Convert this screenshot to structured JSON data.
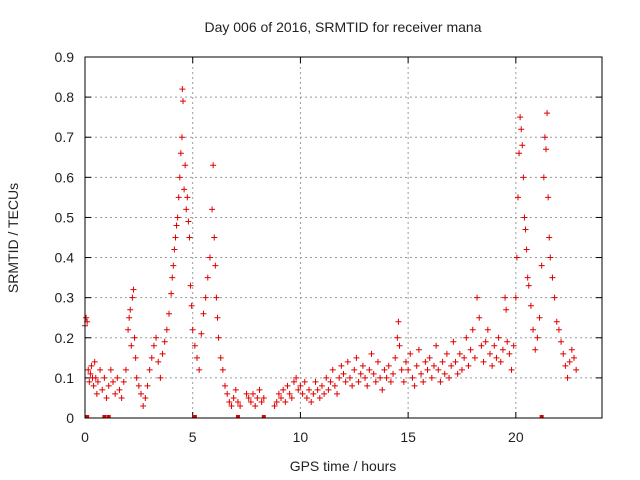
{
  "chart_data": {
    "type": "scatter",
    "title": "Day 006 of 2016, SRMTID for receiver mana",
    "xlabel": "GPS time / hours",
    "ylabel": "SRMTID / TECUs",
    "xlim": [
      0,
      24
    ],
    "ylim": [
      0,
      0.9
    ],
    "xticks": [
      0,
      5,
      10,
      15,
      20
    ],
    "yticks": [
      0,
      0.1,
      0.2,
      0.3,
      0.4,
      0.5,
      0.6,
      0.7,
      0.8,
      0.9
    ],
    "ytick_labels": [
      "0",
      "0.1",
      "0.2",
      "0.3",
      "0.4",
      "0.5",
      "0.6",
      "0.7",
      "0.8",
      "0.9"
    ],
    "grid": true,
    "marker": "+",
    "color": "#e00000",
    "series": [
      {
        "name": "SRMTID",
        "points": [
          [
            0.0,
            0.23
          ],
          [
            0.05,
            0.25
          ],
          [
            0.1,
            0.24
          ],
          [
            0.15,
            0.12
          ],
          [
            0.2,
            0.09
          ],
          [
            0.25,
            0.11
          ],
          [
            0.3,
            0.13
          ],
          [
            0.35,
            0.1
          ],
          [
            0.4,
            0.08
          ],
          [
            0.45,
            0.14
          ],
          [
            0.5,
            0.1
          ],
          [
            0.55,
            0.06
          ],
          [
            0.6,
            0.09
          ],
          [
            0.7,
            0.12
          ],
          [
            0.8,
            0.07
          ],
          [
            0.9,
            0.1
          ],
          [
            1.0,
            0.05
          ],
          [
            1.1,
            0.08
          ],
          [
            1.2,
            0.12
          ],
          [
            1.3,
            0.09
          ],
          [
            1.4,
            0.06
          ],
          [
            1.5,
            0.1
          ],
          [
            1.6,
            0.07
          ],
          [
            1.7,
            0.05
          ],
          [
            1.8,
            0.09
          ],
          [
            1.9,
            0.12
          ],
          [
            2.0,
            0.22
          ],
          [
            2.05,
            0.25
          ],
          [
            2.1,
            0.27
          ],
          [
            2.15,
            0.18
          ],
          [
            2.2,
            0.3
          ],
          [
            2.25,
            0.32
          ],
          [
            2.3,
            0.2
          ],
          [
            2.35,
            0.15
          ],
          [
            2.4,
            0.1
          ],
          [
            2.5,
            0.08
          ],
          [
            2.6,
            0.06
          ],
          [
            2.7,
            0.03
          ],
          [
            2.8,
            0.05
          ],
          [
            2.9,
            0.08
          ],
          [
            3.0,
            0.12
          ],
          [
            3.1,
            0.15
          ],
          [
            3.2,
            0.18
          ],
          [
            3.3,
            0.2
          ],
          [
            3.4,
            0.14
          ],
          [
            3.5,
            0.1
          ],
          [
            3.6,
            0.16
          ],
          [
            3.7,
            0.19
          ],
          [
            3.8,
            0.22
          ],
          [
            3.9,
            0.26
          ],
          [
            4.0,
            0.31
          ],
          [
            4.05,
            0.35
          ],
          [
            4.1,
            0.38
          ],
          [
            4.15,
            0.42
          ],
          [
            4.2,
            0.45
          ],
          [
            4.25,
            0.48
          ],
          [
            4.3,
            0.5
          ],
          [
            4.35,
            0.55
          ],
          [
            4.4,
            0.6
          ],
          [
            4.45,
            0.66
          ],
          [
            4.5,
            0.7
          ],
          [
            4.52,
            0.82
          ],
          [
            4.55,
            0.79
          ],
          [
            4.6,
            0.57
          ],
          [
            4.65,
            0.63
          ],
          [
            4.7,
            0.52
          ],
          [
            4.75,
            0.55
          ],
          [
            4.8,
            0.49
          ],
          [
            4.85,
            0.45
          ],
          [
            4.9,
            0.33
          ],
          [
            4.95,
            0.28
          ],
          [
            5.0,
            0.22
          ],
          [
            5.1,
            0.18
          ],
          [
            5.2,
            0.15
          ],
          [
            5.3,
            0.12
          ],
          [
            5.4,
            0.21
          ],
          [
            5.5,
            0.26
          ],
          [
            5.6,
            0.3
          ],
          [
            5.7,
            0.35
          ],
          [
            5.8,
            0.4
          ],
          [
            5.9,
            0.52
          ],
          [
            5.95,
            0.63
          ],
          [
            6.0,
            0.45
          ],
          [
            6.05,
            0.38
          ],
          [
            6.1,
            0.3
          ],
          [
            6.15,
            0.25
          ],
          [
            6.2,
            0.2
          ],
          [
            6.3,
            0.15
          ],
          [
            6.4,
            0.12
          ],
          [
            6.5,
            0.08
          ],
          [
            6.6,
            0.06
          ],
          [
            6.7,
            0.04
          ],
          [
            6.8,
            0.03
          ],
          [
            6.9,
            0.05
          ],
          [
            7.0,
            0.07
          ],
          [
            7.1,
            0.04
          ],
          [
            7.2,
            0.03
          ],
          [
            7.5,
            0.06
          ],
          [
            7.6,
            0.05
          ],
          [
            7.7,
            0.04
          ],
          [
            7.8,
            0.06
          ],
          [
            7.9,
            0.03
          ],
          [
            8.0,
            0.05
          ],
          [
            8.1,
            0.07
          ],
          [
            8.2,
            0.04
          ],
          [
            8.3,
            0.05
          ],
          [
            8.8,
            0.03
          ],
          [
            8.9,
            0.04
          ],
          [
            9.0,
            0.06
          ],
          [
            9.1,
            0.05
          ],
          [
            9.2,
            0.07
          ],
          [
            9.3,
            0.04
          ],
          [
            9.4,
            0.08
          ],
          [
            9.5,
            0.06
          ],
          [
            9.6,
            0.05
          ],
          [
            9.7,
            0.09
          ],
          [
            9.8,
            0.1
          ],
          [
            9.9,
            0.07
          ],
          [
            10.0,
            0.08
          ],
          [
            10.1,
            0.06
          ],
          [
            10.2,
            0.09
          ],
          [
            10.3,
            0.05
          ],
          [
            10.4,
            0.07
          ],
          [
            10.5,
            0.04
          ],
          [
            10.6,
            0.06
          ],
          [
            10.7,
            0.09
          ],
          [
            10.8,
            0.07
          ],
          [
            10.9,
            0.05
          ],
          [
            11.0,
            0.08
          ],
          [
            11.1,
            0.06
          ],
          [
            11.2,
            0.1
          ],
          [
            11.3,
            0.07
          ],
          [
            11.4,
            0.09
          ],
          [
            11.5,
            0.12
          ],
          [
            11.6,
            0.08
          ],
          [
            11.7,
            0.06
          ],
          [
            11.8,
            0.1
          ],
          [
            11.9,
            0.13
          ],
          [
            12.0,
            0.11
          ],
          [
            12.1,
            0.09
          ],
          [
            12.2,
            0.14
          ],
          [
            12.3,
            0.1
          ],
          [
            12.4,
            0.08
          ],
          [
            12.5,
            0.12
          ],
          [
            12.6,
            0.15
          ],
          [
            12.7,
            0.09
          ],
          [
            12.8,
            0.11
          ],
          [
            12.9,
            0.13
          ],
          [
            13.0,
            0.1
          ],
          [
            13.1,
            0.08
          ],
          [
            13.2,
            0.12
          ],
          [
            13.3,
            0.16
          ],
          [
            13.4,
            0.11
          ],
          [
            13.5,
            0.09
          ],
          [
            13.6,
            0.14
          ],
          [
            13.7,
            0.1
          ],
          [
            13.8,
            0.07
          ],
          [
            13.9,
            0.12
          ],
          [
            14.0,
            0.1
          ],
          [
            14.1,
            0.13
          ],
          [
            14.2,
            0.09
          ],
          [
            14.3,
            0.11
          ],
          [
            14.4,
            0.15
          ],
          [
            14.5,
            0.2
          ],
          [
            14.55,
            0.24
          ],
          [
            14.6,
            0.18
          ],
          [
            14.7,
            0.12
          ],
          [
            14.8,
            0.09
          ],
          [
            14.9,
            0.14
          ],
          [
            15.0,
            0.12
          ],
          [
            15.1,
            0.16
          ],
          [
            15.2,
            0.1
          ],
          [
            15.3,
            0.08
          ],
          [
            15.4,
            0.13
          ],
          [
            15.5,
            0.17
          ],
          [
            15.6,
            0.11
          ],
          [
            15.7,
            0.09
          ],
          [
            15.8,
            0.14
          ],
          [
            15.9,
            0.12
          ],
          [
            16.0,
            0.15
          ],
          [
            16.1,
            0.1
          ],
          [
            16.2,
            0.13
          ],
          [
            16.3,
            0.18
          ],
          [
            16.4,
            0.12
          ],
          [
            16.5,
            0.09
          ],
          [
            16.6,
            0.14
          ],
          [
            16.7,
            0.11
          ],
          [
            16.8,
            0.16
          ],
          [
            16.9,
            0.1
          ],
          [
            17.0,
            0.13
          ],
          [
            17.1,
            0.19
          ],
          [
            17.2,
            0.14
          ],
          [
            17.3,
            0.11
          ],
          [
            17.4,
            0.16
          ],
          [
            17.5,
            0.12
          ],
          [
            17.6,
            0.15
          ],
          [
            17.7,
            0.2
          ],
          [
            17.8,
            0.13
          ],
          [
            17.9,
            0.17
          ],
          [
            18.0,
            0.22
          ],
          [
            18.1,
            0.15
          ],
          [
            18.2,
            0.3
          ],
          [
            18.3,
            0.25
          ],
          [
            18.4,
            0.18
          ],
          [
            18.5,
            0.14
          ],
          [
            18.6,
            0.19
          ],
          [
            18.7,
            0.22
          ],
          [
            18.8,
            0.16
          ],
          [
            18.9,
            0.13
          ],
          [
            19.0,
            0.18
          ],
          [
            19.1,
            0.15
          ],
          [
            19.2,
            0.2
          ],
          [
            19.3,
            0.14
          ],
          [
            19.4,
            0.17
          ],
          [
            19.5,
            0.3
          ],
          [
            19.55,
            0.27
          ],
          [
            19.6,
            0.19
          ],
          [
            19.7,
            0.16
          ],
          [
            19.8,
            0.12
          ],
          [
            19.9,
            0.18
          ],
          [
            20.0,
            0.3
          ],
          [
            20.05,
            0.4
          ],
          [
            20.1,
            0.55
          ],
          [
            20.15,
            0.66
          ],
          [
            20.2,
            0.75
          ],
          [
            20.25,
            0.72
          ],
          [
            20.3,
            0.68
          ],
          [
            20.35,
            0.6
          ],
          [
            20.4,
            0.5
          ],
          [
            20.45,
            0.47
          ],
          [
            20.5,
            0.42
          ],
          [
            20.55,
            0.35
          ],
          [
            20.6,
            0.33
          ],
          [
            20.7,
            0.28
          ],
          [
            20.8,
            0.22
          ],
          [
            20.9,
            0.17
          ],
          [
            21.0,
            0.2
          ],
          [
            21.1,
            0.25
          ],
          [
            21.2,
            0.38
          ],
          [
            21.3,
            0.6
          ],
          [
            21.35,
            0.7
          ],
          [
            21.4,
            0.67
          ],
          [
            21.45,
            0.76
          ],
          [
            21.5,
            0.55
          ],
          [
            21.55,
            0.45
          ],
          [
            21.6,
            0.4
          ],
          [
            21.7,
            0.35
          ],
          [
            21.8,
            0.3
          ],
          [
            21.9,
            0.24
          ],
          [
            22.0,
            0.22
          ],
          [
            22.1,
            0.19
          ],
          [
            22.2,
            0.16
          ],
          [
            22.3,
            0.13
          ],
          [
            22.4,
            0.1
          ],
          [
            22.5,
            0.14
          ],
          [
            22.6,
            0.17
          ],
          [
            22.7,
            0.15
          ],
          [
            22.8,
            0.12
          ]
        ]
      }
    ],
    "marks_at_zero_x": [
      0.1,
      0.9,
      1.1,
      5.1,
      7.1,
      8.3,
      21.2
    ]
  }
}
